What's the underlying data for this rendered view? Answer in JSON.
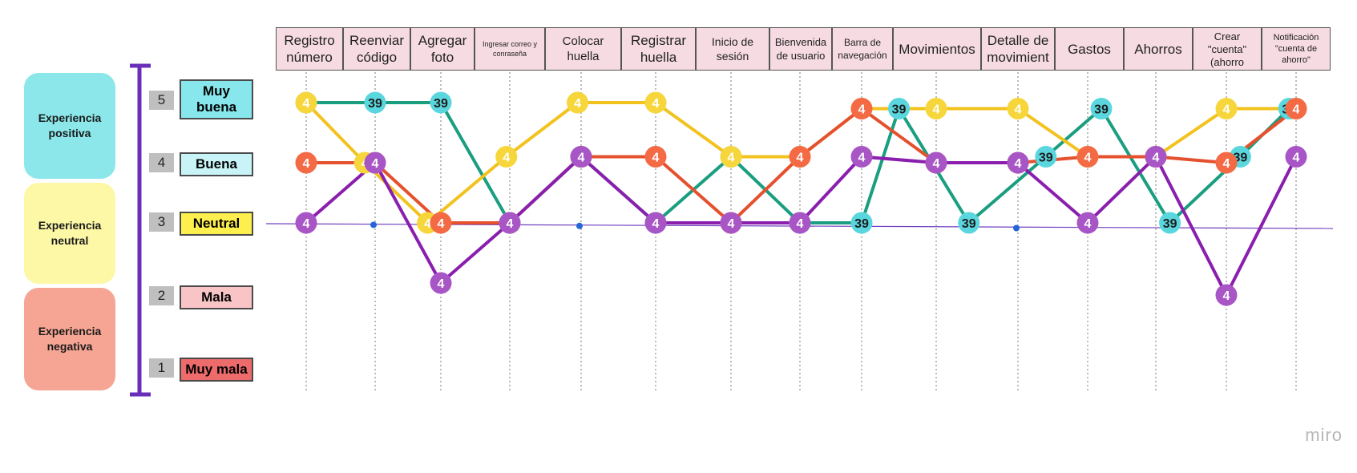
{
  "zones": [
    {
      "label": "Experiencia positiva",
      "color": "#8be7ea"
    },
    {
      "label": "Experiencia neutral",
      "color": "#fdf8a6"
    },
    {
      "label": "Experiencia negativa",
      "color": "#f6a594"
    }
  ],
  "levels": [
    {
      "value": 5,
      "label": "Muy buena",
      "color": "#87e7ec"
    },
    {
      "value": 4,
      "label": "Buena",
      "color": "#c9f4f7"
    },
    {
      "value": 3,
      "label": "Neutral",
      "color": "#fdf04e"
    },
    {
      "value": 2,
      "label": "Mala",
      "color": "#f8c4c6"
    },
    {
      "value": 1,
      "label": "Muy mala",
      "color": "#ee6b6b"
    }
  ],
  "steps": [
    "Registro número",
    "Reenviar código",
    "Agregar foto",
    "Ingresar correo y conraseña",
    "Colocar huella",
    "Registrar huella",
    "Inicio de sesión",
    "Bienvenida de usuario",
    "Barra de navegación",
    "Movimientos",
    "Detalle de movimient",
    "Gastos",
    "Ahorros",
    "Crear \"cuenta\" (ahorro",
    "Notificación \"cuenta de ahorro\""
  ],
  "brand": "miro",
  "chart_data": {
    "type": "line",
    "categories": [
      "Registro número",
      "Reenviar código",
      "Agregar foto",
      "Ingresar correo y conraseña",
      "Colocar huella",
      "Registrar huella",
      "Inicio de sesión",
      "Bienvenida de usuario",
      "Barra de navegación",
      "Movimientos",
      "Detalle de movimient",
      "Gastos",
      "Ahorros",
      "Crear \"cuenta\" (ahorro",
      "Notificación \"cuenta de ahorro\""
    ],
    "ylim": [
      1,
      5
    ],
    "series": [
      {
        "color": "#1a9e80",
        "marker_color": "#5ad6de",
        "marker_text": "39",
        "points": [
          [
            0,
            5
          ],
          [
            1,
            5
          ],
          [
            2,
            5
          ],
          [
            3,
            3
          ],
          [
            4,
            4.1
          ],
          [
            5,
            3
          ],
          [
            6,
            4.1
          ],
          [
            7,
            3
          ],
          [
            8,
            3
          ],
          [
            8.5,
            4.9
          ],
          [
            9.4,
            3
          ],
          [
            10.4,
            4.1
          ],
          [
            11.2,
            4.9
          ],
          [
            12.2,
            3
          ],
          [
            13.2,
            4.1
          ],
          [
            13.9,
            4.9
          ]
        ]
      },
      {
        "color": "#f2c21f",
        "marker_color": "#f7d63c",
        "marker_text": "4",
        "points": [
          [
            0,
            5
          ],
          [
            0.85,
            4
          ],
          [
            1.8,
            3
          ],
          [
            2.95,
            4.1
          ],
          [
            3.95,
            5
          ],
          [
            5,
            5
          ],
          [
            6,
            4.1
          ],
          [
            7,
            4.1
          ],
          [
            8,
            4.9
          ],
          [
            9,
            4.9
          ],
          [
            10,
            4.9
          ],
          [
            11,
            4.1
          ],
          [
            12,
            4.1
          ],
          [
            13,
            4.9
          ],
          [
            14,
            4.9
          ]
        ]
      },
      {
        "color": "#e5512e",
        "marker_color": "#f36a45",
        "marker_text": "4",
        "points": [
          [
            0,
            4
          ],
          [
            1,
            4
          ],
          [
            2,
            3
          ],
          [
            3,
            3
          ],
          [
            4,
            4.1
          ],
          [
            5,
            4.1
          ],
          [
            6,
            3
          ],
          [
            7,
            4.1
          ],
          [
            8,
            4.9
          ],
          [
            9,
            4
          ],
          [
            10,
            4
          ],
          [
            11,
            4.1
          ],
          [
            12,
            4.1
          ],
          [
            13,
            4
          ],
          [
            14,
            4.9
          ]
        ]
      },
      {
        "color": "#8a1fae",
        "marker_color": "#a855c6",
        "marker_text": "4",
        "points": [
          [
            0,
            3
          ],
          [
            1,
            4
          ],
          [
            2,
            2
          ],
          [
            3,
            3
          ],
          [
            4,
            4.1
          ],
          [
            5,
            3
          ],
          [
            6,
            3
          ],
          [
            7,
            3
          ],
          [
            8,
            4.1
          ],
          [
            9,
            4
          ],
          [
            10,
            4
          ],
          [
            11,
            3
          ],
          [
            12,
            4.1
          ],
          [
            13,
            1.8
          ],
          [
            14,
            4.1
          ]
        ]
      }
    ]
  }
}
